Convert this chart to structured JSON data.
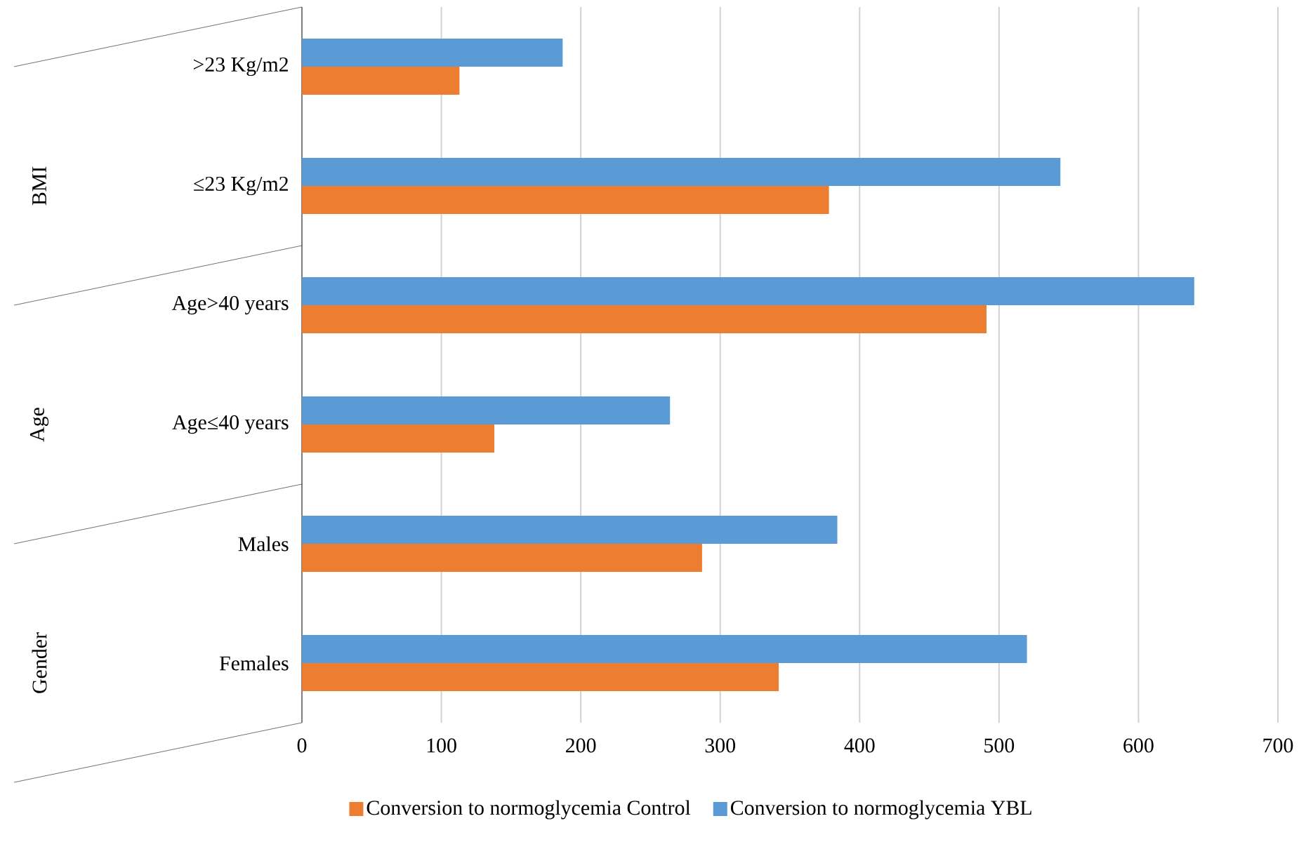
{
  "chart_data": {
    "type": "bar",
    "orientation": "horizontal",
    "categories": [
      ">23 Kg/m2",
      "≤23 Kg/m2",
      "Age>40 years",
      "Age≤40 years",
      "Males",
      "Females"
    ],
    "series": [
      {
        "name": "Conversion to normoglycemia Control",
        "color": "#ed7d31",
        "values": [
          113,
          378,
          491,
          138,
          287,
          342
        ]
      },
      {
        "name": "Conversion to normoglycemia YBL",
        "color": "#5b9bd5",
        "values": [
          187,
          544,
          640,
          264,
          384,
          520
        ]
      }
    ],
    "xlim": [
      0,
      700
    ],
    "xticks": [
      0,
      100,
      200,
      300,
      400,
      500,
      600,
      700
    ],
    "grid": "x",
    "legend": "bottom",
    "annotations": [
      "BMI",
      "Age",
      "Gender"
    ]
  }
}
